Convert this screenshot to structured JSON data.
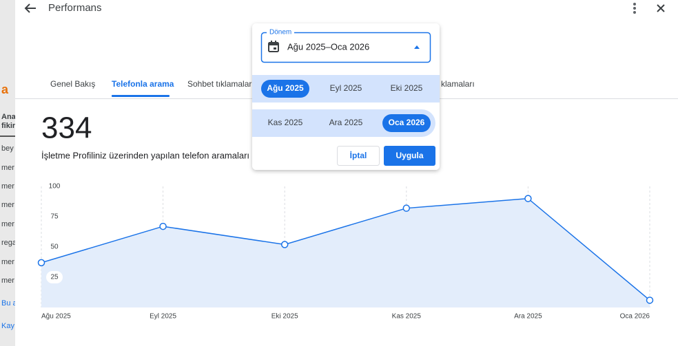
{
  "header": {
    "title": "Performans"
  },
  "background_text": [
    "a",
    "Ana",
    "fikir",
    "bey",
    "mer",
    "mer",
    "mer",
    "mer",
    "rega",
    "mer",
    "mer",
    "Bu a",
    "Kay"
  ],
  "tabs": [
    "Genel Bakış",
    "Telefonla arama",
    "Sohbet tıklamaları",
    "klamaları"
  ],
  "metric": {
    "value": 334,
    "description": "İşletme Profiliniz üzerinden yapılan telefon aramaları"
  },
  "chart_data": {
    "type": "line",
    "categories": [
      "Ağu 2025",
      "Eyl 2025",
      "Eki 2025",
      "Kas 2025",
      "Ara 2025",
      "Oca 2026"
    ],
    "values": [
      37,
      67,
      52,
      82,
      90,
      6
    ],
    "color": "#1a73e8",
    "fill": "#e3edfb",
    "ylim": [
      0,
      100
    ],
    "yticks": [
      25,
      50,
      75,
      100
    ]
  },
  "date_picker": {
    "label": "Dönem",
    "value": "Ağu 2025–Oca 2026",
    "months": [
      "Ağu 2025",
      "Eyl 2025",
      "Eki 2025",
      "Kas 2025",
      "Ara 2025",
      "Oca 2026"
    ],
    "cancel": "İptal",
    "apply": "Uygula"
  }
}
